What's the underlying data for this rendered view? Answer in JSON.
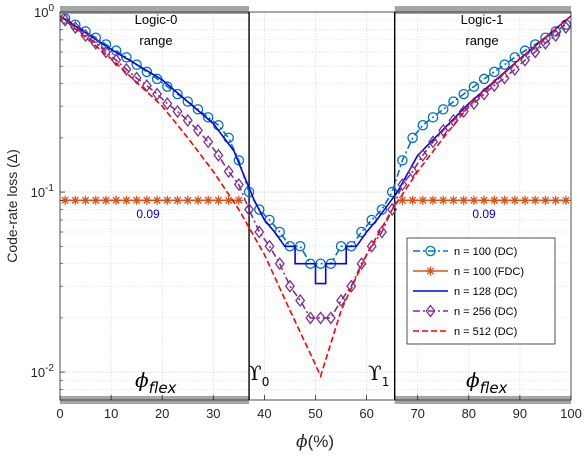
{
  "chart_data": {
    "type": "line",
    "xlabel_symbol": "ϕ",
    "xlabel_unit": "(%)",
    "ylabel": "Code-rate loss (Δ)",
    "xlim": [
      0,
      100
    ],
    "ylim": [
      0.007,
      1
    ],
    "yscale": "log",
    "grid": true,
    "legend_position": "right",
    "x_ticks": [
      "0",
      "10",
      "20",
      "30",
      "40",
      "50",
      "60",
      "70",
      "80",
      "90",
      "100"
    ],
    "y_ticks": [
      {
        "base": "10",
        "exp": "0"
      },
      {
        "base": "10",
        "exp": "-1"
      },
      {
        "base": "10",
        "exp": "-2"
      }
    ],
    "annotations": {
      "logic0": [
        "Logic-0",
        "range"
      ],
      "logic1": [
        "Logic-1",
        "range"
      ],
      "value_left": "0.09",
      "value_right": "0.09",
      "phi_symbol": "ϕ",
      "phi_sub": "flex",
      "upsilon_symbol": "ϒ",
      "upsilon0_sub": "0",
      "upsilon1_sub": "1"
    },
    "vertical_lines": [
      37,
      65.5
    ],
    "range_bars": [
      [
        0,
        37
      ],
      [
        65.5,
        100
      ]
    ],
    "series": [
      {
        "name": "n = 100 (DC)",
        "color": "#0072BD",
        "style": "dashdot",
        "marker": "circle",
        "x": [
          1,
          3,
          5,
          7,
          9,
          11,
          13,
          15,
          17,
          19,
          21,
          23,
          25,
          27,
          29,
          31,
          33,
          35,
          37,
          39,
          41,
          43,
          45,
          47,
          49,
          51,
          53,
          55,
          57,
          59,
          61,
          63,
          65,
          67,
          69,
          71,
          73,
          75,
          77,
          79,
          81,
          83,
          85,
          87,
          89,
          91,
          93,
          95,
          97,
          99
        ],
        "y": [
          0.92,
          0.85,
          0.78,
          0.72,
          0.66,
          0.61,
          0.56,
          0.51,
          0.465,
          0.425,
          0.385,
          0.35,
          0.318,
          0.288,
          0.26,
          0.235,
          0.2,
          0.15,
          0.1,
          0.08,
          0.07,
          0.06,
          0.05,
          0.05,
          0.04,
          0.04,
          0.04,
          0.05,
          0.05,
          0.06,
          0.07,
          0.08,
          0.1,
          0.15,
          0.2,
          0.235,
          0.26,
          0.288,
          0.318,
          0.35,
          0.385,
          0.425,
          0.465,
          0.51,
          0.56,
          0.61,
          0.66,
          0.72,
          0.78,
          0.85
        ]
      },
      {
        "name": "n = 100 (FDC)",
        "color": "#D95319",
        "style": "solid",
        "marker": "asterisk",
        "x": [
          1,
          3,
          5,
          7,
          9,
          11,
          13,
          15,
          17,
          19,
          21,
          23,
          25,
          27,
          29,
          31,
          33,
          35,
          67,
          69,
          71,
          73,
          75,
          77,
          79,
          81,
          83,
          85,
          87,
          89,
          91,
          93,
          95,
          97,
          99
        ],
        "y": [
          0.09,
          0.09,
          0.09,
          0.09,
          0.09,
          0.09,
          0.09,
          0.09,
          0.09,
          0.09,
          0.09,
          0.09,
          0.09,
          0.09,
          0.09,
          0.09,
          0.09,
          0.09,
          0.09,
          0.09,
          0.09,
          0.09,
          0.09,
          0.09,
          0.09,
          0.09,
          0.09,
          0.09,
          0.09,
          0.09,
          0.09,
          0.09,
          0.09,
          0.09,
          0.09
        ]
      },
      {
        "name": "n = 128 (DC)",
        "color": "#0000FF",
        "style": "solid",
        "marker": "none",
        "x": [
          0,
          10,
          20,
          30,
          34,
          38,
          40,
          42,
          44,
          46,
          46,
          48,
          48,
          50,
          50,
          52,
          52,
          54,
          54,
          56,
          56,
          58,
          58,
          60,
          62,
          66,
          70,
          80,
          90,
          100
        ],
        "y": [
          0.95,
          0.62,
          0.42,
          0.24,
          0.17,
          0.09,
          0.07,
          0.06,
          0.05,
          0.05,
          0.04,
          0.04,
          0.04,
          0.04,
          0.031,
          0.031,
          0.04,
          0.04,
          0.04,
          0.04,
          0.05,
          0.05,
          0.05,
          0.06,
          0.07,
          0.1,
          0.16,
          0.31,
          0.55,
          0.95
        ]
      },
      {
        "name": "n = 256 (DC)",
        "color": "#7E2F8E",
        "style": "dashdot",
        "marker": "diamond",
        "x": [
          1,
          3,
          5,
          7,
          9,
          11,
          13,
          15,
          17,
          19,
          21,
          23,
          25,
          27,
          29,
          31,
          33,
          35,
          37,
          39,
          41,
          43,
          45,
          47,
          49,
          51,
          53,
          55,
          57,
          59,
          61,
          63,
          65,
          67,
          69,
          71,
          73,
          75,
          77,
          79,
          81,
          83,
          85,
          87,
          89,
          91,
          93,
          95,
          97,
          99
        ],
        "y": [
          0.9,
          0.82,
          0.74,
          0.67,
          0.6,
          0.54,
          0.48,
          0.43,
          0.39,
          0.35,
          0.31,
          0.28,
          0.25,
          0.22,
          0.19,
          0.16,
          0.13,
          0.11,
          0.08,
          0.06,
          0.05,
          0.04,
          0.03,
          0.025,
          0.02,
          0.02,
          0.02,
          0.025,
          0.03,
          0.04,
          0.05,
          0.06,
          0.08,
          0.11,
          0.13,
          0.16,
          0.19,
          0.22,
          0.25,
          0.28,
          0.31,
          0.35,
          0.39,
          0.43,
          0.48,
          0.54,
          0.6,
          0.67,
          0.74,
          0.82
        ]
      },
      {
        "name": "n = 512 (DC)",
        "color": "#FF0000",
        "style": "dashed",
        "marker": "none",
        "x": [
          0,
          10,
          20,
          25,
          30,
          35,
          40,
          45,
          50,
          51,
          55,
          60,
          65,
          70,
          75,
          80,
          90,
          100
        ],
        "y": [
          0.95,
          0.55,
          0.3,
          0.2,
          0.13,
          0.08,
          0.045,
          0.022,
          0.011,
          0.0095,
          0.022,
          0.045,
          0.08,
          0.13,
          0.2,
          0.3,
          0.55,
          0.95
        ]
      }
    ]
  }
}
